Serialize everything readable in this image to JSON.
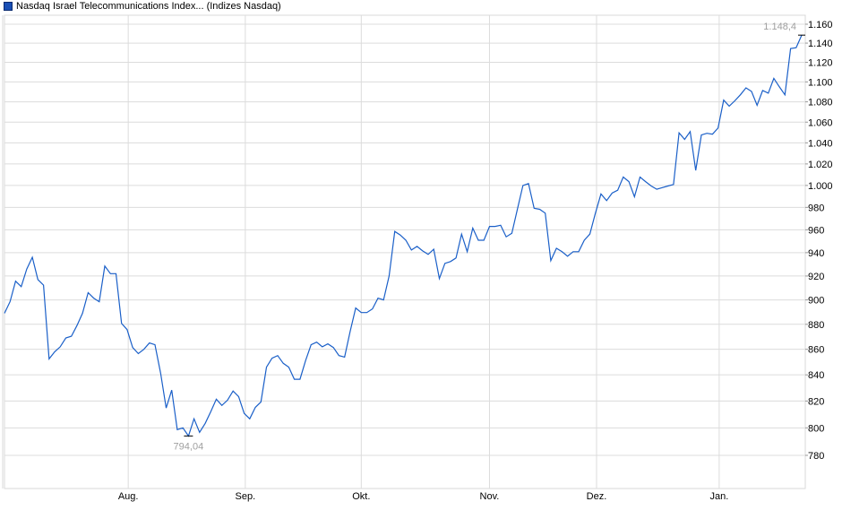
{
  "chart_data": {
    "type": "line",
    "title": "Nasdaq Israel Telecommunications Index... (Indizes Nasdaq)",
    "legend_color": "#1a4fb5",
    "line_color": "#1a5fc8",
    "grid": true,
    "y_scale": "log",
    "ylim": [
      760,
      1172
    ],
    "y_ticks": [
      780,
      800,
      820,
      840,
      860,
      880,
      900,
      920,
      940,
      960,
      980,
      1000,
      1020,
      1040,
      1060,
      1080,
      1100,
      1120,
      1140,
      1160
    ],
    "y_tick_labels": [
      "780",
      "800",
      "820",
      "840",
      "860",
      "880",
      "900",
      "920",
      "940",
      "960",
      "980",
      "1.000",
      "1.020",
      "1.040",
      "1.060",
      "1.080",
      "1.100",
      "1.120",
      "1.140",
      "1.160"
    ],
    "x_ticks": [
      {
        "label": "Aug.",
        "index": 22.2
      },
      {
        "label": "Sep.",
        "index": 43.2
      },
      {
        "label": "Okt.",
        "index": 64.0
      },
      {
        "label": "Nov.",
        "index": 87.0
      },
      {
        "label": "Dez.",
        "index": 106.2
      },
      {
        "label": "Jan.",
        "index": 128.2
      }
    ],
    "values": [
      889,
      898.5,
      915.6,
      911,
      926,
      936,
      917,
      912.3,
      852.4,
      858,
      862,
      869,
      870.4,
      879,
      889,
      906,
      901.5,
      898.5,
      928.5,
      922,
      922,
      880.7,
      875.7,
      861.4,
      856.6,
      860,
      865,
      863.6,
      841.4,
      814.7,
      828.3,
      798.7,
      800,
      794.04,
      806.7,
      796.7,
      803.3,
      812,
      821.4,
      816.7,
      820.7,
      827.6,
      823.4,
      810.7,
      806.7,
      815.3,
      819.3,
      846,
      853,
      855,
      849,
      846,
      836.6,
      836.6,
      851,
      863.6,
      865.7,
      862,
      864.3,
      861.4,
      855,
      853.8,
      874.3,
      893.3,
      889.6,
      889.6,
      892.6,
      901.5,
      900,
      920,
      958.5,
      955.4,
      950.8,
      942.3,
      945.4,
      941.5,
      938.5,
      943,
      917.8,
      930.8,
      932.3,
      935.4,
      956.2,
      940.8,
      961.5,
      950.8,
      950.8,
      963,
      963,
      964,
      953.8,
      956.9,
      978.3,
      1000,
      1001.7,
      979.2,
      978.3,
      974.8,
      933.1,
      943.8,
      940.8,
      936.9,
      940.8,
      940.8,
      950.8,
      956.2,
      974.8,
      992.2,
      986.1,
      993,
      995.6,
      1007.8,
      1003.5,
      989.6,
      1007.8,
      1003.5,
      999.5,
      996.5,
      998,
      999.5,
      1000.9,
      1049.6,
      1043.3,
      1050.8,
      1013.9,
      1047.5,
      1049.2,
      1048.3,
      1054.2,
      1081.7,
      1075.7,
      1081,
      1087,
      1094,
      1090.4,
      1076.5,
      1091.3,
      1088.7,
      1103.6,
      1095,
      1087,
      1134.3,
      1135.2,
      1148.4
    ],
    "annotations": {
      "low": {
        "label": "794,04",
        "index": 33,
        "value": 794.04
      },
      "high": {
        "label": "1.148,4",
        "index": 143,
        "value": 1148.4
      }
    }
  }
}
